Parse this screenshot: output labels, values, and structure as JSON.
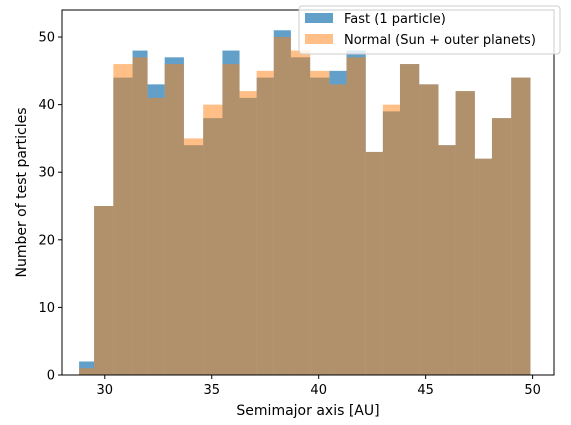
{
  "chart_data": {
    "type": "bar",
    "title": "",
    "xlabel": "Semimajor axis [AU]",
    "ylabel": "Number of test particles",
    "xlim": [
      28.0,
      51.0
    ],
    "ylim": [
      0,
      54
    ],
    "xticks": [
      30,
      35,
      40,
      45,
      50
    ],
    "yticks": [
      0,
      10,
      20,
      30,
      40,
      50
    ],
    "grid": false,
    "legend_position": "top-right",
    "bin_edges": [
      28.8,
      29.5,
      30.4,
      31.3,
      32.0,
      32.8,
      33.7,
      34.6,
      35.5,
      36.3,
      37.1,
      37.9,
      38.7,
      39.6,
      40.5,
      41.3,
      42.2,
      43.0,
      43.8,
      44.7,
      45.6,
      46.4,
      47.3,
      48.1,
      49.0,
      49.9
    ],
    "series": [
      {
        "name": "Fast (1 particle)",
        "color": "#1f77b4",
        "alpha": 0.7,
        "values": [
          2,
          25,
          44,
          48,
          43,
          47,
          34,
          38,
          48,
          41,
          44,
          51,
          47,
          44,
          45,
          48,
          33,
          39,
          46,
          43,
          34,
          42,
          32,
          38,
          44
        ]
      },
      {
        "name": "Normal (Sun + outer planets)",
        "color": "#ff7f0e",
        "alpha": 0.5,
        "values": [
          1,
          25,
          46,
          47,
          41,
          46,
          35,
          40,
          46,
          42,
          45,
          50,
          48,
          45,
          43,
          47,
          33,
          40,
          46,
          43,
          34,
          42,
          32,
          38,
          44
        ]
      }
    ]
  }
}
